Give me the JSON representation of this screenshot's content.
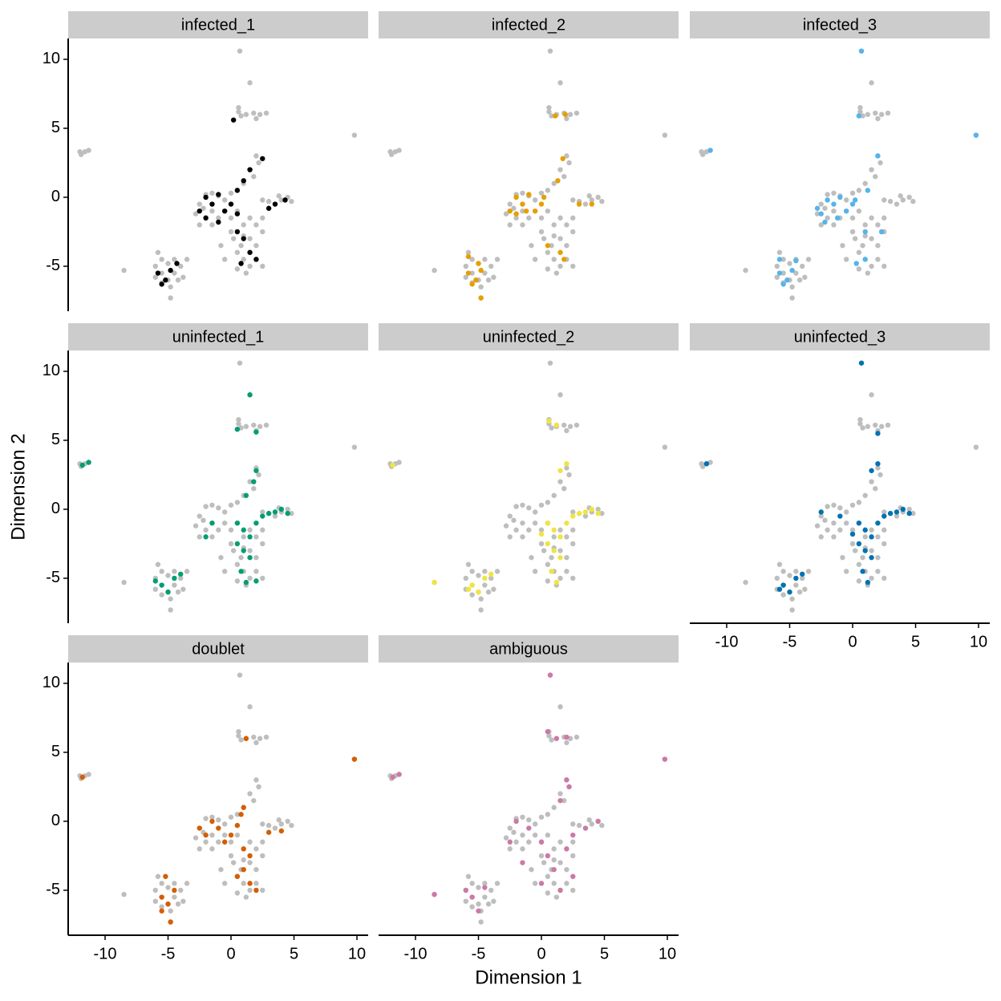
{
  "chart_data": {
    "type": "scatter",
    "x_label": "Dimension 1",
    "y_label": "Dimension 2",
    "xlim": [
      -12.93,
      10.89
    ],
    "ylim": [
      -8.26,
      11.51
    ],
    "xticks": [
      -10,
      -5,
      0,
      5,
      10
    ],
    "yticks": [
      -5,
      0,
      5,
      10
    ],
    "background": {
      "color": "#bebebe",
      "x": [
        -11.9,
        -11.6,
        -11.3,
        -12.0,
        9.8,
        -8.5,
        0.7,
        1.5,
        0.6,
        0.8,
        1.2,
        1.8,
        2.3,
        2.8,
        0.6,
        2.0,
        -2.8,
        -2.5,
        -2.0,
        -1.5,
        -1.0,
        -0.5,
        0,
        0.5,
        1.0,
        1.5,
        2.0,
        2.2,
        1.8,
        2.5,
        3.0,
        3.5,
        4.0,
        4.5,
        4.8,
        3.8,
        -2.5,
        -2.0,
        -1.5,
        -1.0,
        -0.5,
        0,
        0.5,
        1.0,
        1.5,
        2.0,
        2.5,
        -1.5,
        -2.2,
        0.2,
        0.8,
        1.5,
        2.0,
        2.5,
        0.5,
        1.0,
        1.5,
        2.0,
        0.5,
        1.2,
        2.5,
        -0.5,
        -0.8,
        0,
        1.0,
        -6.0,
        -5.5,
        -5.0,
        -4.5,
        -4.0,
        -3.5,
        -5.5,
        -5.0,
        -4.5,
        -6.0,
        -5.5,
        -4.8,
        -4.8,
        -5.8,
        -3.8,
        -4.2
      ],
      "y": [
        3.1,
        3.3,
        3.4,
        3.3,
        4.5,
        -5.3,
        10.6,
        8.3,
        6.2,
        5.9,
        6.0,
        6.1,
        6.0,
        6.1,
        6.5,
        5.7,
        -1.2,
        -0.5,
        0.2,
        0.3,
        0.1,
        -0.2,
        0.3,
        0.5,
        1.0,
        2.0,
        3.0,
        2.5,
        1.5,
        -0.2,
        -0.3,
        -0.5,
        -0.2,
        0,
        -0.3,
        0.1,
        -2.0,
        -1.5,
        -2.0,
        -1.5,
        -1.0,
        -1.5,
        -1.0,
        -2.0,
        -1.5,
        -2.0,
        -1.5,
        -1.0,
        -0.8,
        -3.0,
        -3.5,
        -3.0,
        -3.5,
        -2.5,
        -4.0,
        -4.5,
        -5.0,
        -4.5,
        -5.2,
        -5.5,
        -5.0,
        -4.5,
        -3.5,
        -2.5,
        -2.8,
        -5.0,
        -5.5,
        -6.0,
        -5.5,
        -5.0,
        -4.5,
        -4.5,
        -4.8,
        -4.5,
        -5.8,
        -6.2,
        -6.5,
        -7.3,
        -4.0,
        -5.8,
        -6.0
      ]
    },
    "facets": [
      {
        "title": "infected_1",
        "color": "#000000",
        "x": [
          -2.5,
          -2,
          -1.5,
          -1,
          -0.5,
          0,
          0.5,
          -1,
          -2,
          0.5,
          1,
          1.5,
          2.5,
          3,
          3.5,
          4.3,
          1,
          1.5,
          0.8,
          2,
          0.5,
          -5.8,
          -5.2,
          -4.8,
          -4.3,
          -5.5,
          0.2
        ],
        "y": [
          -1,
          0,
          -0.5,
          0.2,
          -1,
          -0.5,
          -1.2,
          -1.8,
          -1.5,
          0.5,
          1.2,
          2,
          2.8,
          -0.8,
          -0.5,
          -0.2,
          -3,
          -4,
          -4.8,
          -4.5,
          -2.5,
          -5.5,
          -6,
          -5.3,
          -4.8,
          -6.3,
          5.6
        ]
      },
      {
        "title": "infected_2",
        "color": "#e69f00",
        "x": [
          -2.5,
          -2,
          -1.5,
          -1,
          -0.5,
          0,
          -2,
          -1.2,
          0.2,
          1.3,
          1.7,
          1.5,
          1.8,
          0.5,
          3,
          4,
          -5.8,
          -5.2,
          -4.8,
          -5.5,
          -5.8,
          -5,
          -4.8,
          1.1,
          1.9
        ],
        "y": [
          -1,
          0,
          -0.5,
          0.2,
          -1,
          -0.5,
          -1.2,
          -1,
          0,
          1.2,
          2.8,
          -4,
          -4.5,
          -3.5,
          -0.5,
          -0.5,
          -5.5,
          -6,
          -5.3,
          -6.3,
          -4.3,
          -4.8,
          -7.3,
          5.9,
          6
        ]
      },
      {
        "title": "infected_3",
        "color": "#56b4e9",
        "x": [
          -2.5,
          -2,
          -1.5,
          -1,
          -0.5,
          0,
          -2.2,
          -1.2,
          0.2,
          -2.8,
          1,
          2.3,
          1,
          0.3,
          2,
          1.2,
          -5.8,
          -5.2,
          -4.8,
          -5.5,
          -5.8,
          -4.5,
          -11.3,
          0.7,
          9.8,
          0.5
        ],
        "y": [
          -1.2,
          -0.2,
          -0.5,
          0,
          -1,
          -0.5,
          -1.8,
          -1.5,
          -0.2,
          -0.8,
          -2.5,
          -2.5,
          -4.5,
          -4.8,
          3,
          0.5,
          -5.5,
          -6,
          -5.3,
          -6.3,
          -4.5,
          -4.6,
          3.4,
          10.6,
          4.5,
          5.9
        ]
      },
      {
        "title": "uninfected_1",
        "color": "#009e73",
        "x": [
          0.5,
          1,
          1.5,
          2,
          2.5,
          3,
          3.5,
          4,
          4.5,
          1,
          1.5,
          0.8,
          1.2,
          2,
          0.5,
          -1.5,
          -2,
          1.2,
          1.8,
          2,
          -5.5,
          -5,
          -4.5,
          -4,
          -6,
          -11.8,
          -11.3,
          1.5,
          2,
          0.5
        ],
        "y": [
          -1,
          -1.5,
          -2,
          -1,
          -0.5,
          -0.3,
          -0.2,
          0,
          -0.3,
          -3,
          -3.5,
          -4.5,
          -5.3,
          -5.2,
          -2.5,
          -1,
          -2,
          1,
          2,
          2.8,
          -5.5,
          -6,
          -5,
          -4.7,
          -5.2,
          3.2,
          3.4,
          8.3,
          5.6,
          5.8
        ]
      },
      {
        "title": "uninfected_2",
        "color": "#f0e442",
        "x": [
          0.5,
          1,
          1.5,
          2,
          2.5,
          3,
          3.5,
          4,
          4.5,
          1,
          1.5,
          0.8,
          1.2,
          0.5,
          0,
          1.5,
          2,
          -5.5,
          -5,
          -4.5,
          -4,
          -5.8,
          -8.5,
          -11.8,
          0.6,
          1.2
        ],
        "y": [
          -1,
          -1.5,
          -2,
          -1,
          -0.5,
          -0.3,
          -0.2,
          0,
          -0.3,
          -3,
          -3.5,
          -4.5,
          -5.3,
          -2.5,
          -1.8,
          2.8,
          3.3,
          -5.5,
          -6,
          -5,
          -4.7,
          -5.8,
          -5.3,
          3.2,
          6.4,
          6.1
        ]
      },
      {
        "title": "uninfected_3",
        "color": "#0072b2",
        "x": [
          0.5,
          1,
          1.5,
          2,
          2.5,
          3,
          3.5,
          4,
          4.5,
          1,
          1.5,
          0.8,
          1.2,
          0.5,
          0,
          -1,
          -2.5,
          1.5,
          2,
          -5.5,
          -5,
          -4.5,
          -4,
          -5.8,
          0.7,
          2,
          -11.6
        ],
        "y": [
          -1,
          -1.5,
          -2,
          -1,
          -0.5,
          -0.3,
          -0.2,
          0,
          -0.3,
          -3,
          -3.5,
          -4.5,
          -5.3,
          -2.5,
          -1.8,
          -0.5,
          -0.2,
          2.8,
          3.3,
          -5.5,
          -6,
          -5,
          -4.7,
          -5.8,
          10.6,
          5.5,
          3.3
        ]
      },
      {
        "title": "doublet",
        "color": "#d55e00",
        "x": [
          -2.5,
          -2,
          -1.5,
          -1,
          -0.5,
          0,
          0.5,
          1,
          1.5,
          1,
          1.5,
          0.5,
          2,
          3,
          4,
          0.8,
          1,
          -5.5,
          -5,
          -4.5,
          -5.2,
          -5.5,
          -4.8,
          -11.8,
          9.8,
          1.2
        ],
        "y": [
          -0.5,
          -1,
          0,
          -0.5,
          -1.5,
          -1,
          -0.3,
          -2,
          -2.5,
          -3.5,
          -4.5,
          -4,
          -5,
          -0.8,
          -0.7,
          0.5,
          1,
          -5.5,
          -6,
          -5,
          -4,
          -6.5,
          -7.3,
          3.2,
          4.5,
          6
        ]
      },
      {
        "title": "ambiguous",
        "color": "#cc79a7",
        "x": [
          -2.5,
          -2,
          -1,
          0,
          0.5,
          1,
          1.5,
          2,
          2.5,
          3.5,
          4.5,
          2,
          2.2,
          1.5,
          -1.5,
          0,
          2.5,
          -5.5,
          -4.5,
          -6,
          -5,
          -8.5,
          -11.8,
          -11.3,
          0.7,
          9.8,
          0.5,
          1.2,
          2
        ],
        "y": [
          -1.5,
          0,
          -0.5,
          -1.5,
          -2.5,
          -3.5,
          -5,
          -2,
          -1,
          -0.5,
          0,
          3,
          2.5,
          1.5,
          -3,
          -4.5,
          -4,
          -5.5,
          -4.8,
          -5,
          -6.5,
          -5.3,
          3.2,
          3.4,
          10.6,
          4.5,
          6.5,
          6,
          6.1
        ]
      }
    ]
  }
}
